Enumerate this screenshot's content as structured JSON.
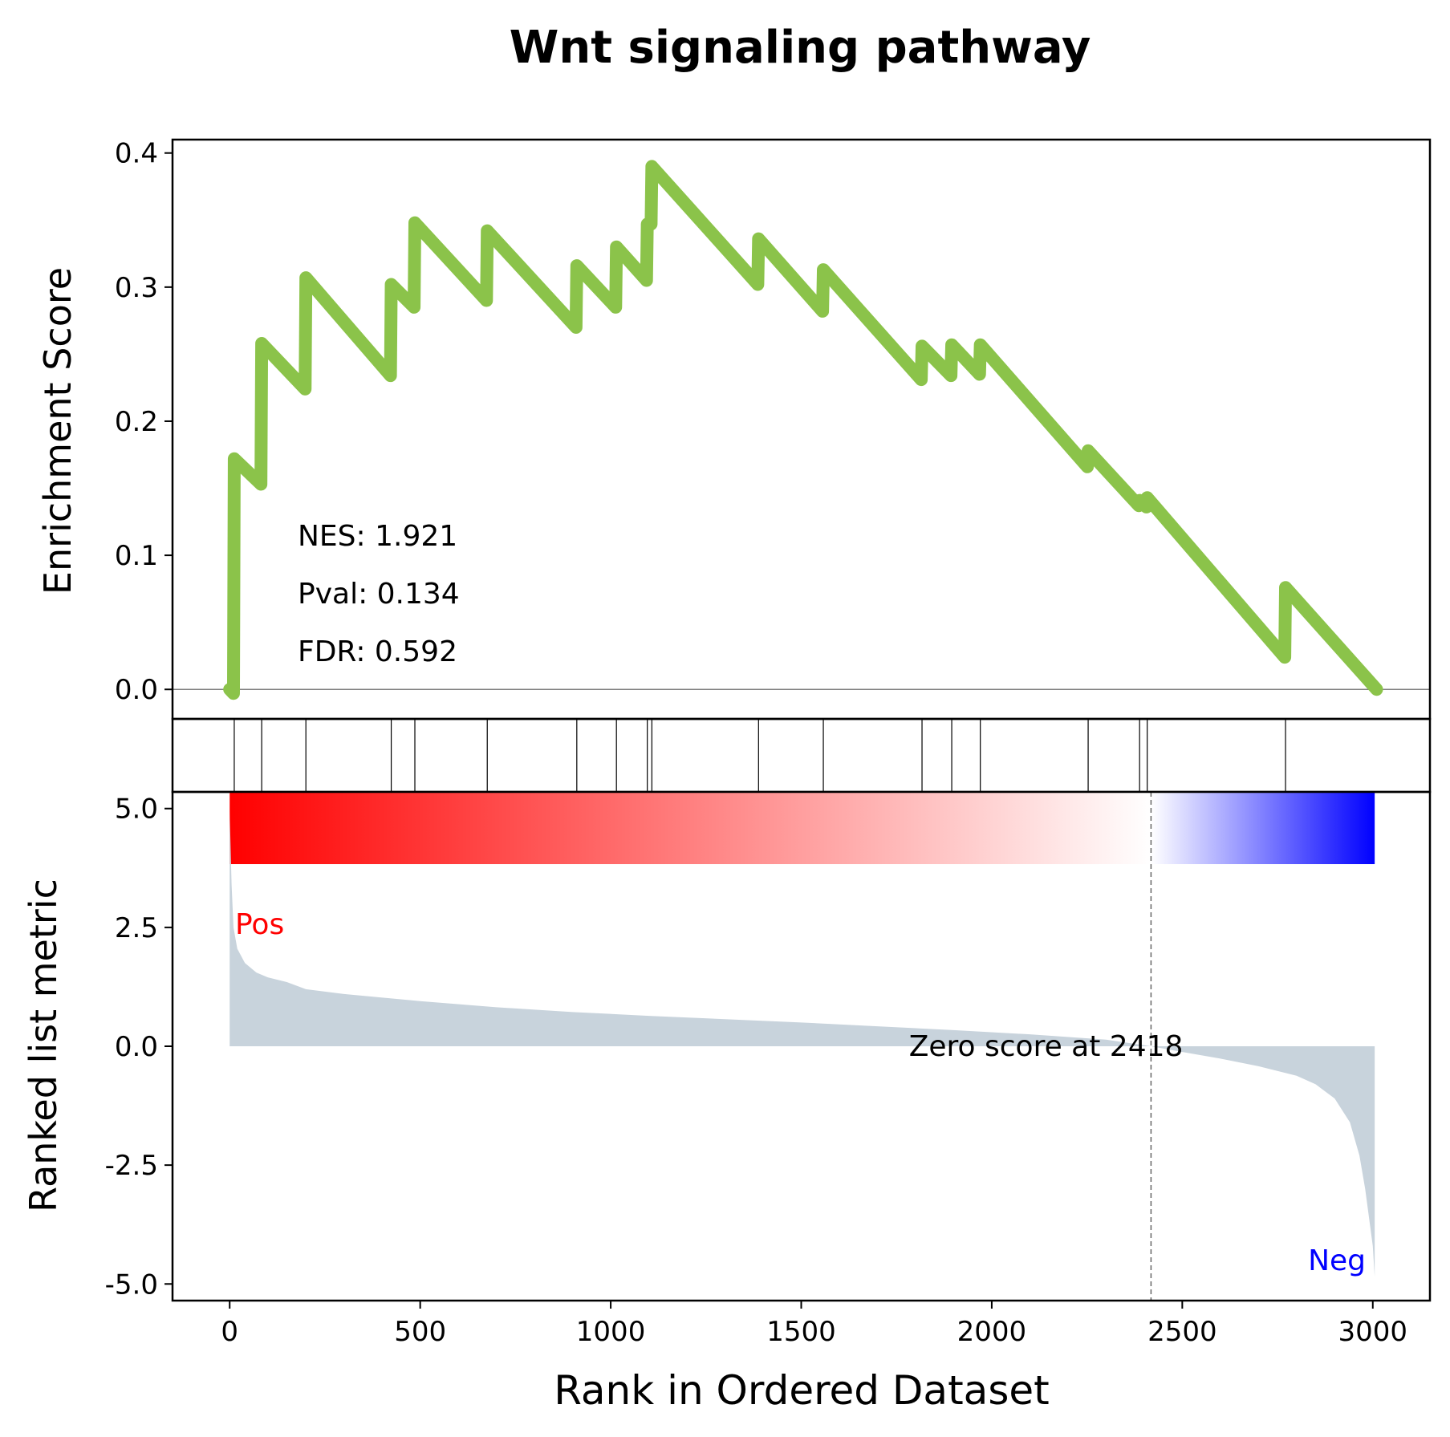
{
  "chart_data": {
    "type": "line",
    "title": "Wnt signaling pathway",
    "xlabel": "Rank in Ordered Dataset",
    "xlim": [
      -150,
      3150
    ],
    "xticks": [
      0,
      500,
      1000,
      1500,
      2000,
      2500,
      3000
    ],
    "xtick_labels": [
      "0",
      "500",
      "1000",
      "1500",
      "2000",
      "2500",
      "3000"
    ],
    "enrichment": {
      "ylabel": "Enrichment Score",
      "ylim": [
        -0.022,
        0.41
      ],
      "yticks": [
        0.0,
        0.1,
        0.2,
        0.3,
        0.4
      ],
      "ytick_labels": [
        "0.0",
        "0.1",
        "0.2",
        "0.3",
        "0.4"
      ],
      "line_color": "#8bc34a",
      "baseline": 0,
      "points": [
        [
          0,
          0.0
        ],
        [
          10,
          -0.003
        ],
        [
          12,
          0.172
        ],
        [
          82,
          0.153
        ],
        [
          84,
          0.258
        ],
        [
          198,
          0.224
        ],
        [
          200,
          0.307
        ],
        [
          422,
          0.234
        ],
        [
          424,
          0.302
        ],
        [
          484,
          0.285
        ],
        [
          486,
          0.348
        ],
        [
          674,
          0.29
        ],
        [
          676,
          0.342
        ],
        [
          909,
          0.27
        ],
        [
          911,
          0.316
        ],
        [
          1013,
          0.285
        ],
        [
          1015,
          0.33
        ],
        [
          1094,
          0.305
        ],
        [
          1096,
          0.347
        ],
        [
          1106,
          0.347
        ],
        [
          1108,
          0.39
        ],
        [
          1386,
          0.302
        ],
        [
          1388,
          0.336
        ],
        [
          1556,
          0.282
        ],
        [
          1558,
          0.313
        ],
        [
          1815,
          0.231
        ],
        [
          1817,
          0.256
        ],
        [
          1893,
          0.234
        ],
        [
          1895,
          0.257
        ],
        [
          1968,
          0.235
        ],
        [
          1970,
          0.257
        ],
        [
          2251,
          0.166
        ],
        [
          2253,
          0.178
        ],
        [
          2386,
          0.137
        ],
        [
          2388,
          0.141
        ],
        [
          2406,
          0.136
        ],
        [
          2408,
          0.143
        ],
        [
          2769,
          0.024
        ],
        [
          2771,
          0.076
        ],
        [
          3010,
          0.0
        ]
      ],
      "annotations": [
        "NES: 1.921",
        "Pval: 0.134",
        "FDR: 0.592"
      ]
    },
    "hits": {
      "ranks": [
        12,
        84,
        200,
        424,
        486,
        676,
        911,
        1015,
        1096,
        1108,
        1388,
        1558,
        1817,
        1895,
        1970,
        2253,
        2388,
        2408,
        2771
      ]
    },
    "colorbar": {
      "colors": [
        "#ff0000",
        "#ffffff",
        "#0000ff"
      ],
      "zero_rank": 2418
    },
    "ranked_metric": {
      "ylabel": "Ranked list metric",
      "ylim": [
        -5.35,
        5.35
      ],
      "yticks": [
        5.0,
        2.5,
        0.0,
        -2.5,
        -5.0
      ],
      "ytick_labels": [
        "5.0",
        "2.5",
        "0.0",
        "-2.5",
        "-5.0"
      ],
      "fill_color": "#c8d3dc",
      "profile": [
        [
          0,
          4.95
        ],
        [
          5,
          3.4
        ],
        [
          10,
          2.5
        ],
        [
          20,
          2.05
        ],
        [
          40,
          1.75
        ],
        [
          70,
          1.55
        ],
        [
          100,
          1.45
        ],
        [
          150,
          1.35
        ],
        [
          200,
          1.2
        ],
        [
          300,
          1.1
        ],
        [
          500,
          0.95
        ],
        [
          700,
          0.82
        ],
        [
          900,
          0.72
        ],
        [
          1100,
          0.64
        ],
        [
          1300,
          0.57
        ],
        [
          1500,
          0.5
        ],
        [
          1700,
          0.42
        ],
        [
          1900,
          0.34
        ],
        [
          2100,
          0.25
        ],
        [
          2300,
          0.14
        ],
        [
          2418,
          0.0
        ],
        [
          2500,
          -0.12
        ],
        [
          2600,
          -0.26
        ],
        [
          2700,
          -0.42
        ],
        [
          2800,
          -0.62
        ],
        [
          2850,
          -0.8
        ],
        [
          2900,
          -1.1
        ],
        [
          2940,
          -1.6
        ],
        [
          2965,
          -2.3
        ],
        [
          2980,
          -3.0
        ],
        [
          2990,
          -3.6
        ],
        [
          3000,
          -4.2
        ],
        [
          3005,
          -4.85
        ]
      ],
      "zero_label": "Zero score at 2418",
      "pos_label": "Pos",
      "neg_label": "Neg",
      "pos_color": "#ff0000",
      "neg_color": "#0000ff"
    }
  }
}
